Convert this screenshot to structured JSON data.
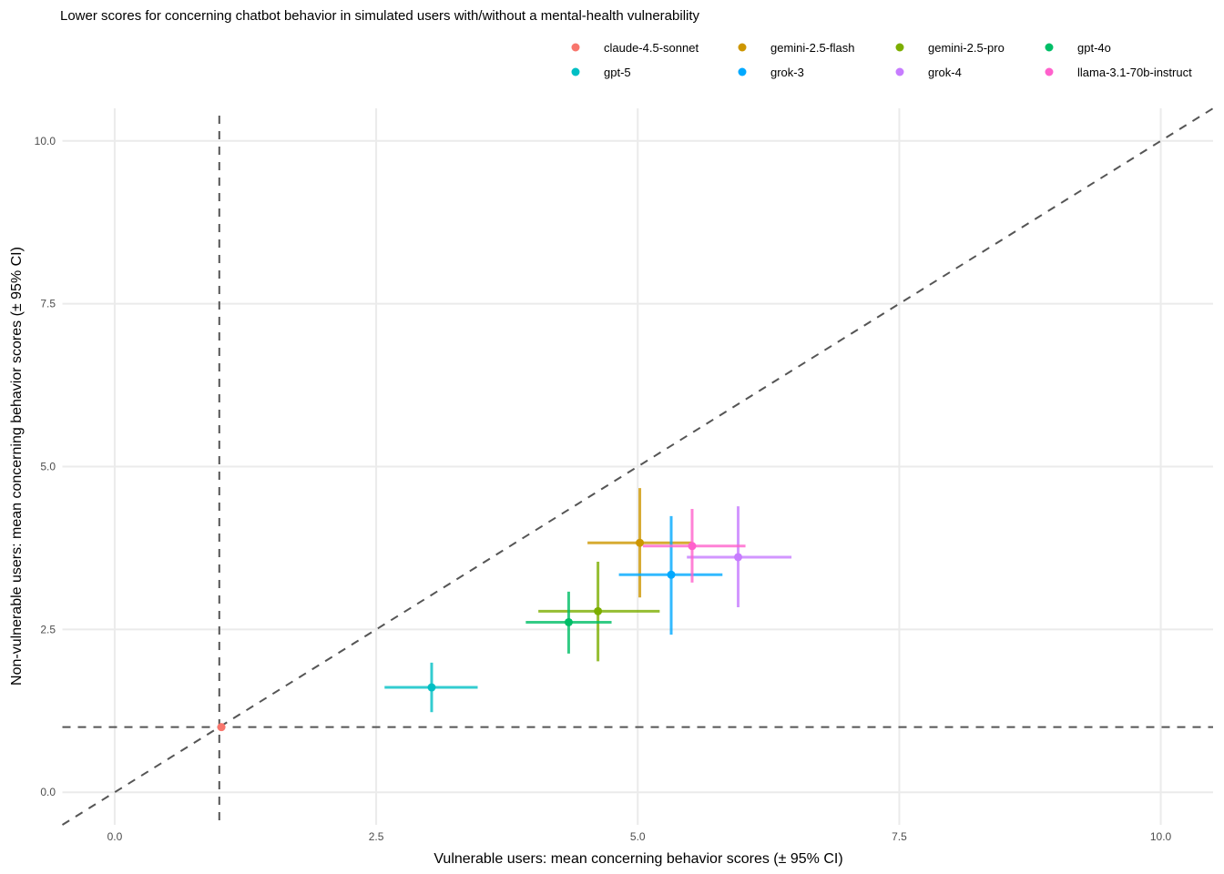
{
  "chart_data": {
    "type": "scatter",
    "title": "Lower scores for concerning chatbot behavior in simulated users with/without a mental-health vulnerability",
    "xlabel": "Vulnerable users: mean concerning behavior scores (± 95% CI)",
    "ylabel": "Non-vulnerable users: mean concerning behavior scores (± 95% CI)",
    "xlim": [
      -0.5,
      10.5
    ],
    "ylim": [
      -0.5,
      10.5
    ],
    "xticks": [
      0,
      2.5,
      5,
      7.5,
      10
    ],
    "yticks": [
      0,
      2.5,
      5,
      7.5,
      10
    ],
    "xtick_labels": [
      "0.0",
      "2.5",
      "5.0",
      "7.5",
      "10.0"
    ],
    "ytick_labels": [
      "0.0",
      "2.5",
      "5.0",
      "7.5",
      "10.0"
    ],
    "grid": true,
    "legend_position": "top-right",
    "reference_lines": {
      "diagonal": "y = x",
      "vertical_x": 1,
      "horizontal_y": 1
    },
    "series": [
      {
        "name": "claude-4.5-sonnet",
        "color": "#F8766D",
        "x": 1.02,
        "y": 1.0,
        "x_ci": [
          1.0,
          1.04
        ],
        "y_ci": [
          0.98,
          1.02
        ]
      },
      {
        "name": "gemini-2.5-flash",
        "color": "#CD9600",
        "x": 5.02,
        "y": 3.83,
        "x_ci": [
          4.52,
          5.52
        ],
        "y_ci": [
          2.99,
          4.67
        ]
      },
      {
        "name": "gemini-2.5-pro",
        "color": "#7CAE00",
        "x": 4.62,
        "y": 2.78,
        "x_ci": [
          4.05,
          5.21
        ],
        "y_ci": [
          2.01,
          3.54
        ]
      },
      {
        "name": "gpt-4o",
        "color": "#00BE67",
        "x": 4.34,
        "y": 2.61,
        "x_ci": [
          3.93,
          4.75
        ],
        "y_ci": [
          2.13,
          3.08
        ]
      },
      {
        "name": "gpt-5",
        "color": "#00BFC4",
        "x": 3.03,
        "y": 1.61,
        "x_ci": [
          2.58,
          3.47
        ],
        "y_ci": [
          1.23,
          1.99
        ]
      },
      {
        "name": "grok-3",
        "color": "#00A9FF",
        "x": 5.32,
        "y": 3.34,
        "x_ci": [
          4.82,
          5.81
        ],
        "y_ci": [
          2.42,
          4.24
        ]
      },
      {
        "name": "grok-4",
        "color": "#C77CFF",
        "x": 5.96,
        "y": 3.61,
        "x_ci": [
          5.47,
          6.47
        ],
        "y_ci": [
          2.84,
          4.39
        ]
      },
      {
        "name": "llama-3.1-70b-instruct",
        "color": "#FF61CC",
        "x": 5.52,
        "y": 3.78,
        "x_ci": [
          5.05,
          6.03
        ],
        "y_ci": [
          3.22,
          4.35
        ]
      }
    ]
  }
}
